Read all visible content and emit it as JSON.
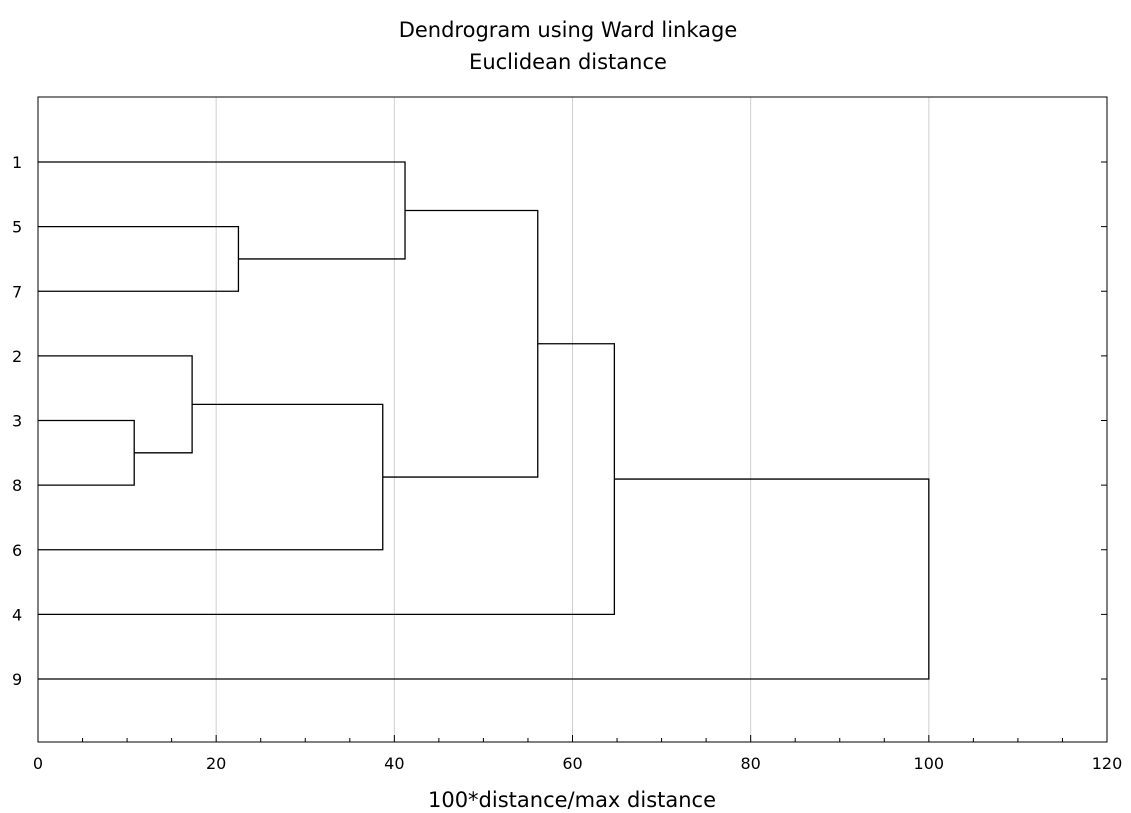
{
  "chart_data": {
    "type": "dendrogram",
    "title": "Dendrogram using Ward linkage",
    "subtitle": "Euclidean distance",
    "xlabel": "100*distance/max distance",
    "ylabel": "",
    "xlim": [
      0,
      120
    ],
    "x_ticks": [
      "0",
      "20",
      "40",
      "60",
      "80",
      "100",
      "120"
    ],
    "grid": "vertical",
    "leaves": [
      "1",
      "5",
      "7",
      "2",
      "3",
      "8",
      "6",
      "4",
      "9"
    ],
    "merges": [
      {
        "a": "3",
        "b": "8",
        "height": 10.8
      },
      {
        "a": "2",
        "b": "3+8",
        "height": 17.3
      },
      {
        "a": "5",
        "b": "7",
        "height": 22.5
      },
      {
        "a": "2+3+8",
        "b": "6",
        "height": 38.7
      },
      {
        "a": "1",
        "b": "5+7",
        "height": 41.2
      },
      {
        "a": "1+5+7",
        "b": "2+3+8+6",
        "height": 56.1
      },
      {
        "a": "1+5+7+2+3+8+6",
        "b": "4",
        "height": 64.7
      },
      {
        "a": "1+5+7+2+3+8+6+4",
        "b": "9",
        "height": 100.0
      }
    ]
  }
}
